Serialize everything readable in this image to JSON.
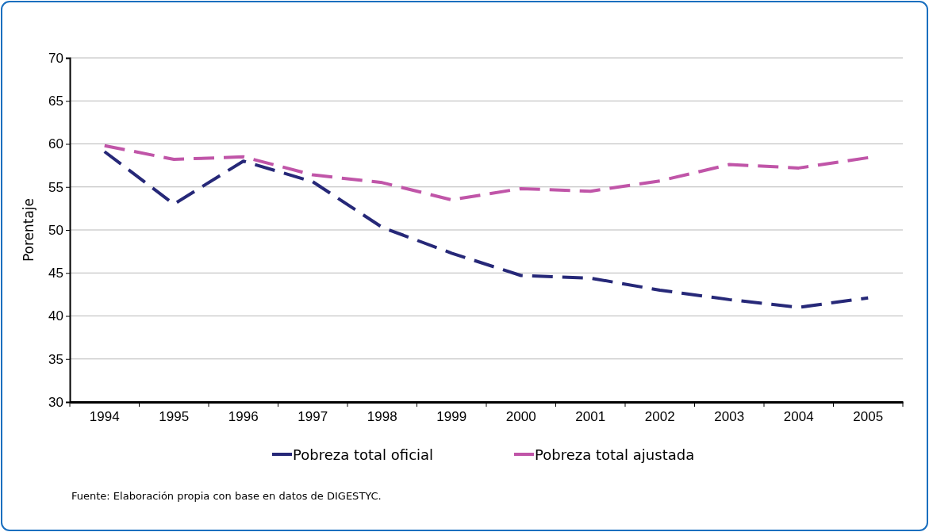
{
  "chart_data": {
    "type": "line",
    "ylabel": "Porentaje",
    "categories": [
      "1994",
      "1995",
      "1996",
      "1997",
      "1998",
      "1999",
      "2000",
      "2001",
      "2002",
      "2003",
      "2004",
      "2005"
    ],
    "series": [
      {
        "name": "Pobreza total oficial",
        "color": "#262878",
        "values": [
          59.1,
          53.0,
          58.0,
          55.6,
          50.3,
          47.3,
          44.7,
          44.4,
          43.0,
          41.9,
          41.0,
          42.1
        ]
      },
      {
        "name": "Pobreza total ajustada",
        "color": "#c055a8",
        "values": [
          59.8,
          58.2,
          58.5,
          56.4,
          55.5,
          53.5,
          54.8,
          54.5,
          55.7,
          57.6,
          57.2,
          58.4
        ]
      }
    ],
    "ylim": [
      30,
      70
    ],
    "yticks": [
      30,
      35,
      40,
      45,
      50,
      55,
      60,
      65,
      70
    ],
    "grid": "y",
    "legend": "bottom",
    "line_style": "dashed",
    "marker": "none",
    "annotations": [
      "Fuente: Elaboración propia con base en datos de DIGESTYC."
    ]
  }
}
